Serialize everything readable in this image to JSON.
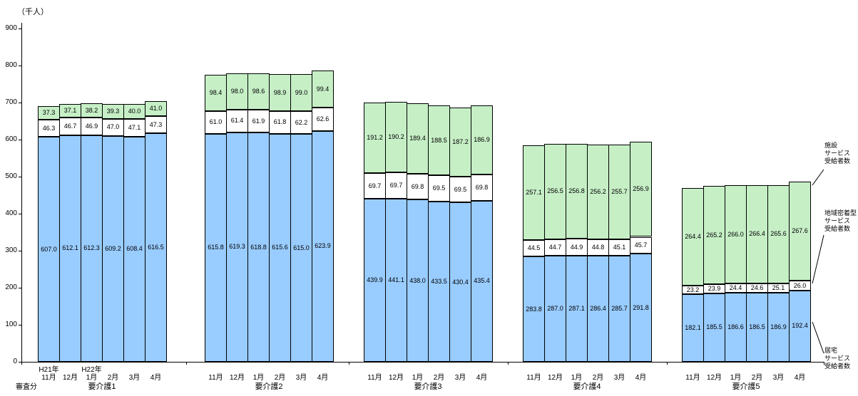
{
  "labels": {
    "unit": "（千人）",
    "note": "審査分"
  },
  "chart_data": {
    "type": "bar",
    "stacked": true,
    "title": "",
    "ylabel": "（千人）",
    "ylim": [
      0,
      900
    ],
    "ytick_step": 100,
    "grid": false,
    "categories": [
      "11月",
      "12月",
      "1月",
      "2月",
      "3月",
      "4月"
    ],
    "year_prefix": {
      "0": "H21年",
      "2": "H22年"
    },
    "series_order": [
      "home",
      "community",
      "facility"
    ],
    "series_labels": {
      "home": "居宅サービス受給者数",
      "community": "地域密着型サービス受給者数",
      "facility": "施設サービス受給者数"
    },
    "colors": {
      "home": "#99CCFF",
      "community": "#FFFFFF",
      "facility": "#C6EFC6"
    },
    "groups": [
      {
        "label": "要介護1",
        "values": {
          "home": [
            607.0,
            612.1,
            612.3,
            609.2,
            608.4,
            616.5
          ],
          "community": [
            46.3,
            46.7,
            46.9,
            47.0,
            47.1,
            47.3
          ],
          "facility": [
            37.3,
            37.1,
            38.2,
            39.3,
            40.0,
            41.0
          ]
        }
      },
      {
        "label": "要介護2",
        "values": {
          "home": [
            615.8,
            619.3,
            618.8,
            615.6,
            615.0,
            623.9
          ],
          "community": [
            61.0,
            61.4,
            61.9,
            61.8,
            62.2,
            62.6
          ],
          "facility": [
            98.4,
            98.0,
            98.6,
            98.9,
            99.0,
            99.4
          ]
        }
      },
      {
        "label": "要介護3",
        "values": {
          "home": [
            439.9,
            441.1,
            438.0,
            433.5,
            430.4,
            435.4
          ],
          "community": [
            69.7,
            69.7,
            69.8,
            69.5,
            69.5,
            69.8
          ],
          "facility": [
            191.2,
            190.2,
            189.4,
            188.5,
            187.2,
            186.9
          ]
        }
      },
      {
        "label": "要介護4",
        "values": {
          "home": [
            283.8,
            287.0,
            287.1,
            286.4,
            285.7,
            291.8
          ],
          "community": [
            44.5,
            44.7,
            44.9,
            44.8,
            45.1,
            45.7
          ],
          "facility": [
            257.1,
            256.5,
            256.8,
            256.2,
            255.7,
            256.9
          ]
        }
      },
      {
        "label": "要介護5",
        "values": {
          "home": [
            182.1,
            185.5,
            186.6,
            186.5,
            186.9,
            192.4
          ],
          "community": [
            23.2,
            23.9,
            24.4,
            24.6,
            25.1,
            26.0
          ],
          "facility": [
            264.4,
            265.2,
            266.0,
            266.4,
            265.6,
            267.6
          ]
        }
      }
    ],
    "annotations": [
      {
        "name": "facility",
        "lines": [
          "施設",
          "サービス",
          "受給者数"
        ]
      },
      {
        "name": "community",
        "lines": [
          "地域密着型",
          "サービス",
          "受給者数"
        ]
      },
      {
        "name": "home",
        "lines": [
          "居宅",
          "サービス",
          "受給者数"
        ]
      }
    ]
  }
}
